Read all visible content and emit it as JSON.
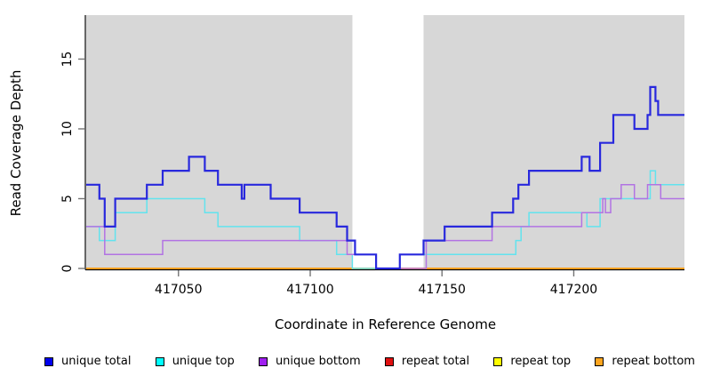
{
  "figure": {
    "x_axis_title": "Coordinate in Reference Genome",
    "y_axis_title": "Read Coverage Depth"
  },
  "chart_data": {
    "type": "line",
    "subtype": "step-coverage",
    "title": "",
    "xlabel": "Coordinate in Reference Genome",
    "ylabel": "Read Coverage Depth",
    "xlim": [
      417015,
      417242
    ],
    "ylim": [
      0,
      18.15
    ],
    "x_ticks": [
      417050,
      417100,
      417150,
      417200
    ],
    "y_ticks": [
      0,
      5,
      10,
      15
    ],
    "grid": false,
    "legend_position": "bottom",
    "plot_background_color": "#d7d7d7",
    "shaded_covered_regions": [
      [
        417015,
        417116
      ],
      [
        417143,
        417242
      ]
    ],
    "uncovered_gap_region": [
      417116,
      417143
    ],
    "series": [
      {
        "name": "repeat total",
        "color": "#e01010",
        "line_width": 1.4,
        "end": 417242,
        "steps": [
          [
            417015,
            0
          ]
        ]
      },
      {
        "name": "repeat top",
        "color": "#f2e410",
        "line_width": 1.4,
        "end": 417242,
        "steps": [
          [
            417015,
            0
          ]
        ]
      },
      {
        "name": "repeat bottom",
        "color": "#ff9e1b",
        "line_width": 1.7,
        "end": 417242,
        "steps": [
          [
            417015,
            0
          ]
        ]
      },
      {
        "name": "unique top",
        "color": "#62e3ee",
        "line_width": 1.5,
        "end": 417242,
        "steps": [
          [
            417015,
            3
          ],
          [
            417020,
            2
          ],
          [
            417026,
            4
          ],
          [
            417038,
            5
          ],
          [
            417060,
            4
          ],
          [
            417065,
            3
          ],
          [
            417096,
            2
          ],
          [
            417110,
            1
          ],
          [
            417116,
            0
          ],
          [
            417134,
            1
          ],
          [
            417178,
            2
          ],
          [
            417180,
            3
          ],
          [
            417183,
            4
          ],
          [
            417205,
            3
          ],
          [
            417210,
            5
          ],
          [
            417229,
            7
          ],
          [
            417231,
            6
          ]
        ]
      },
      {
        "name": "unique bottom",
        "color": "#b273e3",
        "line_width": 1.5,
        "end": 417242,
        "steps": [
          [
            417015,
            3
          ],
          [
            417022,
            1
          ],
          [
            417044,
            2
          ],
          [
            417114,
            1
          ],
          [
            417125,
            0
          ],
          [
            417144,
            2
          ],
          [
            417169,
            3
          ],
          [
            417203,
            4
          ],
          [
            417211,
            5
          ],
          [
            417212,
            4
          ],
          [
            417214,
            5
          ],
          [
            417218,
            6
          ],
          [
            417223,
            5
          ],
          [
            417228,
            6
          ],
          [
            417233,
            5
          ]
        ]
      },
      {
        "name": "unique total",
        "color": "#2828dd",
        "line_width": 2.2,
        "end": 417242,
        "steps": [
          [
            417015,
            6
          ],
          [
            417020,
            5
          ],
          [
            417022,
            3
          ],
          [
            417026,
            5
          ],
          [
            417038,
            6
          ],
          [
            417044,
            7
          ],
          [
            417054,
            8
          ],
          [
            417060,
            7
          ],
          [
            417065,
            6
          ],
          [
            417074,
            5
          ],
          [
            417075,
            6
          ],
          [
            417085,
            5
          ],
          [
            417096,
            4
          ],
          [
            417110,
            3
          ],
          [
            417114,
            2
          ],
          [
            417117,
            1
          ],
          [
            417125,
            0
          ],
          [
            417134,
            1
          ],
          [
            417143,
            2
          ],
          [
            417151,
            3
          ],
          [
            417169,
            4
          ],
          [
            417177,
            5
          ],
          [
            417179,
            6
          ],
          [
            417183,
            7
          ],
          [
            417203,
            8
          ],
          [
            417206,
            7
          ],
          [
            417210,
            9
          ],
          [
            417215,
            11
          ],
          [
            417223,
            10
          ],
          [
            417228,
            11
          ],
          [
            417229,
            13
          ],
          [
            417231,
            12
          ],
          [
            417232,
            11
          ]
        ]
      }
    ],
    "legend": [
      {
        "label": "unique total",
        "color": "#0000ee"
      },
      {
        "label": "unique top",
        "color": "#00ffff"
      },
      {
        "label": "unique bottom",
        "color": "#a020f0"
      },
      {
        "label": "repeat total",
        "color": "#e01010"
      },
      {
        "label": "repeat top",
        "color": "#ffff00"
      },
      {
        "label": "repeat bottom",
        "color": "#ffa51e"
      }
    ]
  }
}
